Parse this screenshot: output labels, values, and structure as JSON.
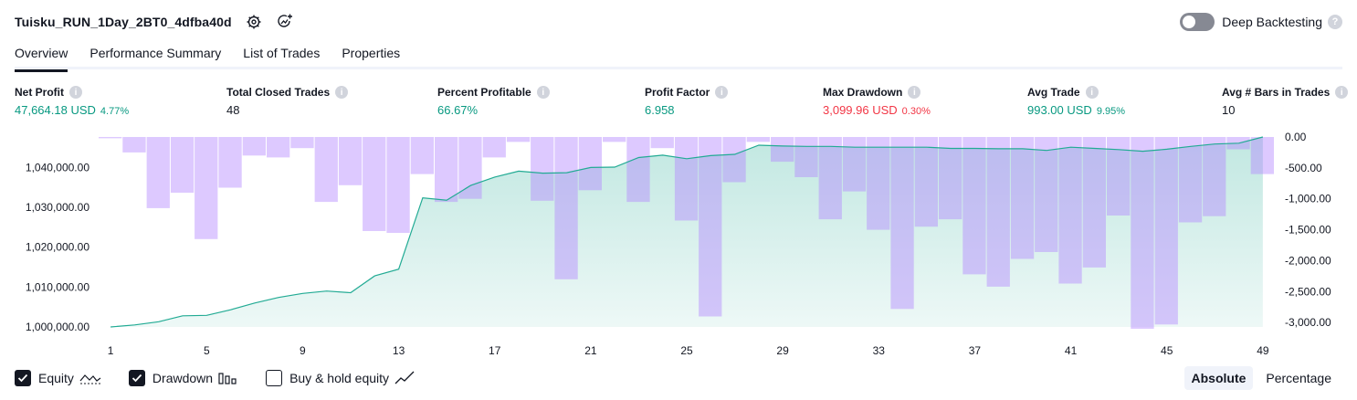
{
  "header": {
    "strategy_title": "Tuisku_RUN_1Day_2BT0_4dfba40d",
    "deep_backtesting_label": "Deep Backtesting",
    "deep_backtesting_on": false
  },
  "tabs": [
    {
      "label": "Overview",
      "active": true
    },
    {
      "label": "Performance Summary",
      "active": false
    },
    {
      "label": "List of Trades",
      "active": false
    },
    {
      "label": "Properties",
      "active": false
    }
  ],
  "metrics": [
    {
      "label": "Net Profit",
      "value": "47,664.18 USD",
      "pct": "4.77%",
      "color": "#089981"
    },
    {
      "label": "Total Closed Trades",
      "value": "48",
      "pct": "",
      "color": "#131722"
    },
    {
      "label": "Percent Profitable",
      "value": "66.67%",
      "pct": "",
      "color": "#089981"
    },
    {
      "label": "Profit Factor",
      "value": "6.958",
      "pct": "",
      "color": "#089981"
    },
    {
      "label": "Max Drawdown",
      "value": "3,099.96 USD",
      "pct": "0.30%",
      "color": "#f23645"
    },
    {
      "label": "Avg Trade",
      "value": "993.00 USD",
      "pct": "9.95%",
      "color": "#089981"
    },
    {
      "label": "Avg # Bars in Trades",
      "value": "10",
      "pct": "",
      "color": "#131722"
    }
  ],
  "legend": {
    "equity_label": "Equity",
    "equity_checked": true,
    "drawdown_label": "Drawdown",
    "drawdown_checked": true,
    "buyhold_label": "Buy & hold equity",
    "buyhold_checked": false
  },
  "modes": {
    "absolute_label": "Absolute",
    "percentage_label": "Percentage",
    "active": "Absolute"
  },
  "chart_data": {
    "type": "area",
    "x": [
      1,
      2,
      3,
      4,
      5,
      6,
      7,
      8,
      9,
      10,
      11,
      12,
      13,
      14,
      15,
      16,
      17,
      18,
      19,
      20,
      21,
      22,
      23,
      24,
      25,
      26,
      27,
      28,
      29,
      30,
      31,
      32,
      33,
      34,
      35,
      36,
      37,
      38,
      39,
      40,
      41,
      42,
      43,
      44,
      45,
      46,
      47,
      48,
      49
    ],
    "x_tick_labels": [
      "1",
      "5",
      "9",
      "13",
      "17",
      "21",
      "25",
      "29",
      "33",
      "37",
      "41",
      "45",
      "49"
    ],
    "left_axis": {
      "ylim": [
        1000000,
        1047664
      ],
      "tick_labels": [
        "1,000,000.00",
        "1,010,000.00",
        "1,020,000.00",
        "1,030,000.00",
        "1,040,000.00"
      ]
    },
    "right_axis": {
      "ylim": [
        -3100,
        0
      ],
      "tick_labels": [
        "0.00",
        "-500.00",
        "-1,000.00",
        "-1,500.00",
        "-2,000.00",
        "-2,500.00",
        "-3,000.00"
      ]
    },
    "series": [
      {
        "name": "Equity",
        "axis": "left",
        "color": "#22ab94",
        "values": [
          1000000,
          1000500,
          1001300,
          1002800,
          1002900,
          1004300,
          1006000,
          1007400,
          1008400,
          1009000,
          1008600,
          1012800,
          1014500,
          1032400,
          1031800,
          1035500,
          1037600,
          1039100,
          1038600,
          1038700,
          1040000,
          1040100,
          1042500,
          1043100,
          1042200,
          1043000,
          1043300,
          1045600,
          1045400,
          1045300,
          1045300,
          1045100,
          1045100,
          1045100,
          1045100,
          1044800,
          1044800,
          1044700,
          1044700,
          1044300,
          1045100,
          1044800,
          1044500,
          1044100,
          1044600,
          1045300,
          1045900,
          1046100,
          1047664
        ]
      },
      {
        "name": "Drawdown",
        "axis": "right",
        "color": "#b39ddb",
        "values": [
          -20,
          -250,
          -1150,
          -900,
          -1650,
          -820,
          -300,
          -330,
          -180,
          -1050,
          -780,
          -1520,
          -1550,
          -600,
          -1050,
          -1000,
          -330,
          -80,
          -1030,
          -2300,
          -860,
          -80,
          -1050,
          -180,
          -1350,
          -2900,
          -730,
          -80,
          -400,
          -650,
          -1330,
          -880,
          -1500,
          -2780,
          -1450,
          -1330,
          -2220,
          -2420,
          -1970,
          -1860,
          -2370,
          -2110,
          -1270,
          -3100,
          -3030,
          -1380,
          -1280,
          -200,
          -600
        ]
      }
    ],
    "grid": false
  }
}
